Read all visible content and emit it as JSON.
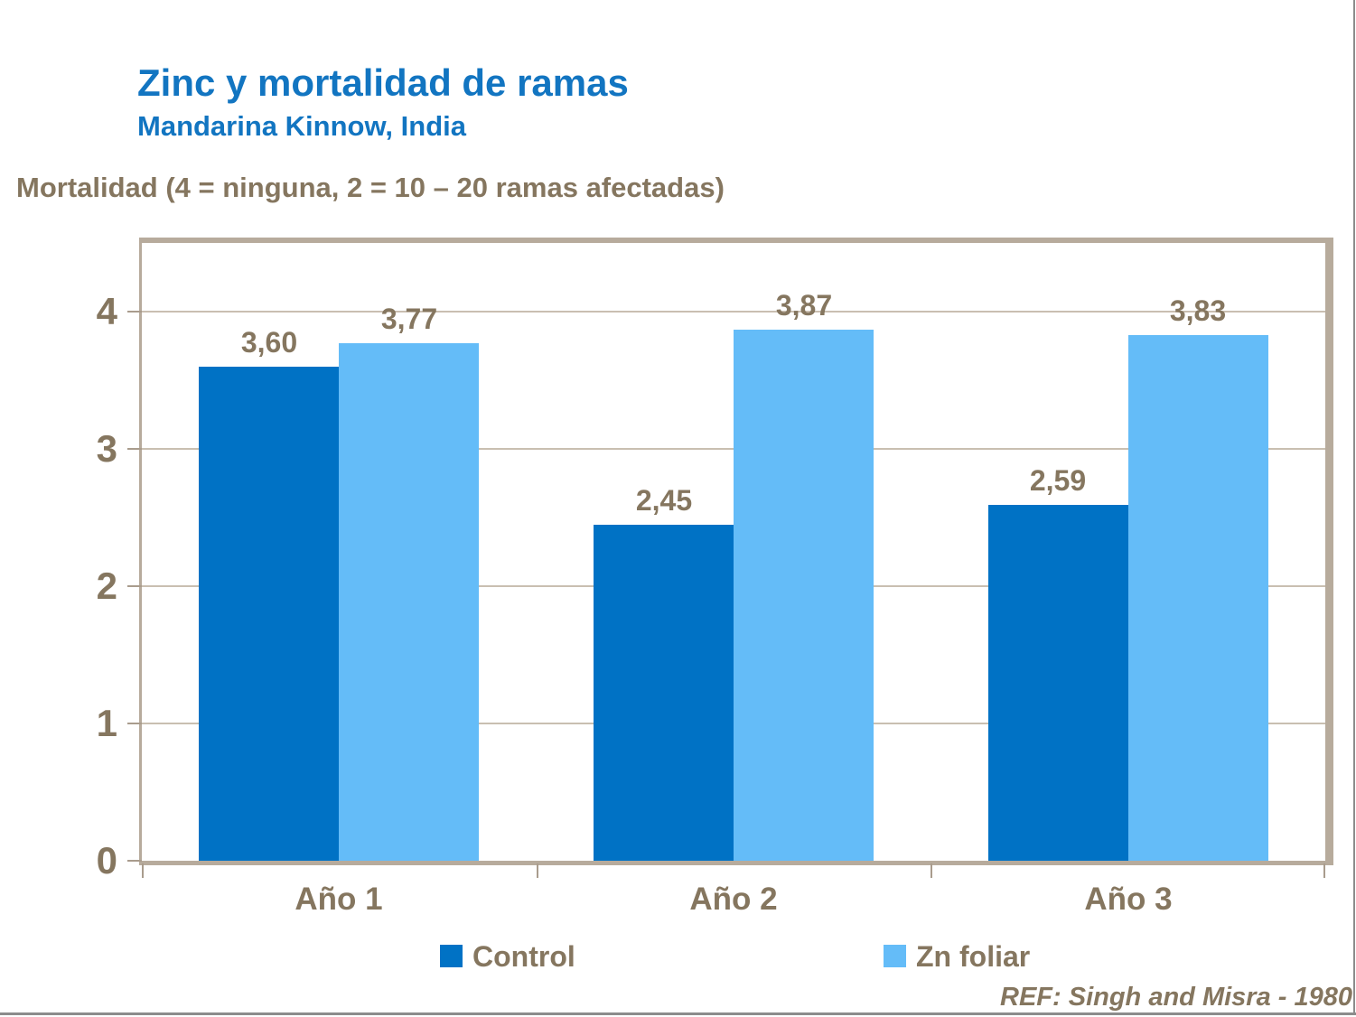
{
  "slide": {
    "title": "Zinc y mortalidad de ramas",
    "subtitle": "Mandarina Kinnow, India",
    "axis_caption": "Mortalidad (4 = ninguna, 2 = 10 – 20 ramas afectadas)",
    "reference": "REF: Singh and Misra - 1980"
  },
  "chart_data": {
    "type": "bar",
    "categories": [
      "Año 1",
      "Año 2",
      "Año 3"
    ],
    "series": [
      {
        "name": "Control",
        "values": [
          3.6,
          2.45,
          2.59
        ],
        "value_labels": [
          "3,60",
          "2,45",
          "2,59"
        ],
        "color": "#0072C5"
      },
      {
        "name": "Zn foliar",
        "values": [
          3.77,
          3.87,
          3.83
        ],
        "value_labels": [
          "3,77",
          "3,87",
          "3,83"
        ],
        "color": "#64BCF8"
      }
    ],
    "ylabel": "Mortalidad",
    "ylim": [
      0,
      4.5
    ],
    "yticks": [
      0,
      1,
      2,
      3,
      4
    ],
    "grid": true,
    "legend_position": "bottom"
  },
  "colors": {
    "title_blue": "#1275C1",
    "text_brown": "#85765F",
    "control_bar": "#0072C5",
    "zn_foliar_bar": "#64BCF8",
    "plot_border_tan": "#B7AB9C",
    "tick_tan": "#A99C8D",
    "gridline_tan": "#C9BFB1",
    "frame_gray": "#8C8C8C"
  }
}
